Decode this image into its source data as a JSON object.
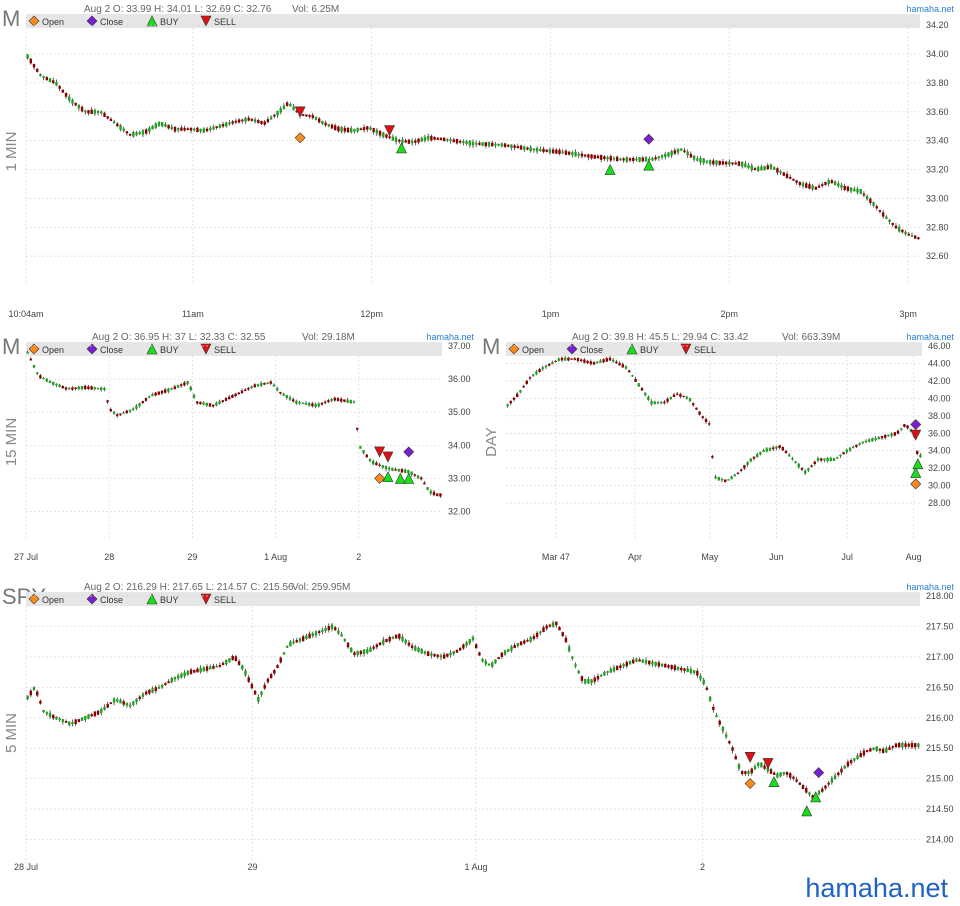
{
  "brand_small": "hamaha.net",
  "brand_footer": "hamaha.net",
  "legend": {
    "open": "Open",
    "close": "Close",
    "buy": "BUY",
    "sell": "SELL"
  },
  "colors": {
    "up_candle": "#22a022",
    "down_candle": "#8b0000",
    "wick": "#222222",
    "open_marker": "#ff8c1a",
    "close_marker": "#7a1fd1",
    "buy_marker": "#18e018",
    "sell_marker": "#dd1111",
    "legend_bar": "#e6e6e6",
    "grid": "#d8d8d8",
    "brand": "#2a7fd4"
  },
  "chart_data": [
    {
      "type": "candlestick",
      "symbol": "M",
      "interval": "1 MIN",
      "info": "Aug 2 O: 33.99 H: 34.01 L: 32.69 C: 32.76",
      "volume": "Vol: 6.25M",
      "ylim": [
        32.4,
        34.25
      ],
      "yticks": [
        "34.20",
        "34.00",
        "33.80",
        "33.60",
        "33.40",
        "33.20",
        "33.00",
        "32.80",
        "32.60"
      ],
      "xlim": [
        0,
        300
      ],
      "xticks": [
        {
          "x": 0,
          "label": "10:04am"
        },
        {
          "x": 56,
          "label": "11am"
        },
        {
          "x": 116,
          "label": "12pm"
        },
        {
          "x": 176,
          "label": "1pm"
        },
        {
          "x": 236,
          "label": "2pm"
        },
        {
          "x": 296,
          "label": "3pm"
        }
      ],
      "path": [
        [
          0,
          34.0
        ],
        [
          5,
          33.85
        ],
        [
          10,
          33.8
        ],
        [
          15,
          33.68
        ],
        [
          20,
          33.6
        ],
        [
          25,
          33.6
        ],
        [
          30,
          33.52
        ],
        [
          35,
          33.44
        ],
        [
          40,
          33.46
        ],
        [
          45,
          33.52
        ],
        [
          50,
          33.48
        ],
        [
          55,
          33.48
        ],
        [
          60,
          33.47
        ],
        [
          65,
          33.5
        ],
        [
          70,
          33.53
        ],
        [
          75,
          33.55
        ],
        [
          80,
          33.52
        ],
        [
          85,
          33.6
        ],
        [
          88,
          33.66
        ],
        [
          92,
          33.58
        ],
        [
          96,
          33.57
        ],
        [
          100,
          33.52
        ],
        [
          105,
          33.48
        ],
        [
          110,
          33.47
        ],
        [
          115,
          33.49
        ],
        [
          120,
          33.44
        ],
        [
          125,
          33.4
        ],
        [
          130,
          33.39
        ],
        [
          135,
          33.42
        ],
        [
          140,
          33.41
        ],
        [
          150,
          33.38
        ],
        [
          160,
          33.37
        ],
        [
          170,
          33.34
        ],
        [
          180,
          33.32
        ],
        [
          190,
          33.29
        ],
        [
          200,
          33.27
        ],
        [
          210,
          33.27
        ],
        [
          215,
          33.3
        ],
        [
          220,
          33.34
        ],
        [
          225,
          33.27
        ],
        [
          230,
          33.25
        ],
        [
          240,
          33.24
        ],
        [
          245,
          33.2
        ],
        [
          250,
          33.22
        ],
        [
          255,
          33.16
        ],
        [
          260,
          33.1
        ],
        [
          265,
          33.07
        ],
        [
          270,
          33.12
        ],
        [
          275,
          33.07
        ],
        [
          280,
          33.05
        ],
        [
          285,
          32.95
        ],
        [
          288,
          32.88
        ],
        [
          292,
          32.8
        ],
        [
          296,
          32.75
        ],
        [
          300,
          32.72
        ]
      ],
      "markers": [
        {
          "kind": "sell",
          "x": 92,
          "y": 33.6
        },
        {
          "kind": "open",
          "x": 92,
          "y": 33.42
        },
        {
          "kind": "sell",
          "x": 122,
          "y": 33.47
        },
        {
          "kind": "buy",
          "x": 126,
          "y": 33.35
        },
        {
          "kind": "buy",
          "x": 196,
          "y": 33.2
        },
        {
          "kind": "close",
          "x": 209,
          "y": 33.41
        },
        {
          "kind": "buy",
          "x": 209,
          "y": 33.23
        }
      ]
    },
    {
      "type": "candlestick",
      "symbol": "M",
      "interval": "15 MIN",
      "info": "Aug 2 O: 36.95 H: 37 L: 32.33 C: 32.55",
      "volume": "Vol: 29.18M",
      "ylim": [
        31.2,
        37.0
      ],
      "yticks": [
        "37.00",
        "36.00",
        "35.00",
        "34.00",
        "33.00",
        "32.00"
      ],
      "xlim": [
        0,
        100
      ],
      "xticks": [
        {
          "x": 0,
          "label": "27 Jul"
        },
        {
          "x": 20,
          "label": "28"
        },
        {
          "x": 40,
          "label": "29"
        },
        {
          "x": 60,
          "label": "1 Aug"
        },
        {
          "x": 80,
          "label": "2"
        }
      ],
      "path": [
        [
          0,
          36.9
        ],
        [
          3,
          36.1
        ],
        [
          6,
          35.9
        ],
        [
          10,
          35.7
        ],
        [
          14,
          35.75
        ],
        [
          19,
          35.7
        ],
        [
          20,
          35.1
        ],
        [
          22,
          34.9
        ],
        [
          26,
          35.1
        ],
        [
          30,
          35.5
        ],
        [
          35,
          35.7
        ],
        [
          39,
          35.9
        ],
        [
          41,
          35.3
        ],
        [
          45,
          35.2
        ],
        [
          50,
          35.5
        ],
        [
          55,
          35.8
        ],
        [
          59,
          35.9
        ],
        [
          61,
          35.6
        ],
        [
          65,
          35.3
        ],
        [
          70,
          35.2
        ],
        [
          74,
          35.4
        ],
        [
          79,
          35.3
        ],
        [
          80,
          34.0
        ],
        [
          83,
          33.5
        ],
        [
          87,
          33.3
        ],
        [
          92,
          33.2
        ],
        [
          95,
          33.0
        ],
        [
          97,
          32.6
        ],
        [
          99,
          32.5
        ]
      ],
      "markers": [
        {
          "kind": "sell",
          "x": 85,
          "y": 33.8
        },
        {
          "kind": "sell",
          "x": 87,
          "y": 33.65
        },
        {
          "kind": "open",
          "x": 85,
          "y": 33.0
        },
        {
          "kind": "buy",
          "x": 87,
          "y": 33.05
        },
        {
          "kind": "buy",
          "x": 90,
          "y": 33.0
        },
        {
          "kind": "buy",
          "x": 92,
          "y": 33.0
        },
        {
          "kind": "close",
          "x": 92,
          "y": 33.8
        }
      ]
    },
    {
      "type": "candlestick",
      "symbol": "M",
      "interval": "DAY",
      "info": "Aug 2 O: 39.8 H: 45.5 L: 29.94 C: 33.42",
      "volume": "Vol: 663.39M",
      "ylim": [
        24.0,
        46.0
      ],
      "yticks": [
        "46.00",
        "44.00",
        "42.00",
        "40.00",
        "38.00",
        "36.00",
        "34.00",
        "32.00",
        "30.00",
        "28.00"
      ],
      "xlim": [
        0,
        100
      ],
      "xticks": [
        {
          "x": 12,
          "label": "Mar 47"
        },
        {
          "x": 31,
          "label": "Apr"
        },
        {
          "x": 49,
          "label": "May"
        },
        {
          "x": 65,
          "label": "Jun"
        },
        {
          "x": 82,
          "label": "Jul"
        },
        {
          "x": 98,
          "label": "Aug"
        }
      ],
      "path": [
        [
          0,
          39.0
        ],
        [
          3,
          40.5
        ],
        [
          6,
          42.5
        ],
        [
          9,
          43.5
        ],
        [
          13,
          44.5
        ],
        [
          17,
          44.5
        ],
        [
          21,
          44.0
        ],
        [
          25,
          44.5
        ],
        [
          29,
          43.5
        ],
        [
          32,
          41.5
        ],
        [
          35,
          39.5
        ],
        [
          38,
          39.5
        ],
        [
          41,
          40.5
        ],
        [
          44,
          40.0
        ],
        [
          47,
          38.0
        ],
        [
          49,
          37.0
        ],
        [
          50,
          31.0
        ],
        [
          53,
          30.5
        ],
        [
          56,
          31.5
        ],
        [
          59,
          33.0
        ],
        [
          62,
          34.0
        ],
        [
          66,
          34.5
        ],
        [
          69,
          33.0
        ],
        [
          72,
          31.5
        ],
        [
          75,
          33.0
        ],
        [
          79,
          33.0
        ],
        [
          82,
          34.0
        ],
        [
          86,
          35.0
        ],
        [
          90,
          35.5
        ],
        [
          94,
          36.0
        ],
        [
          96,
          37.0
        ],
        [
          98,
          36.0
        ],
        [
          99,
          33.4
        ]
      ],
      "markers": [
        {
          "kind": "close",
          "x": 98.5,
          "y": 37.0
        },
        {
          "kind": "sell",
          "x": 98.5,
          "y": 35.8
        },
        {
          "kind": "buy",
          "x": 98.5,
          "y": 31.5
        },
        {
          "kind": "buy",
          "x": 99.0,
          "y": 32.5
        },
        {
          "kind": "open",
          "x": 98.5,
          "y": 30.2
        }
      ]
    },
    {
      "type": "candlestick",
      "symbol": "SPY",
      "interval": "5 MIN",
      "info": "Aug 2 O: 216.29 H: 217.65 L: 214.57 C: 215.56",
      "volume": "Vol: 259.95M",
      "ylim": [
        213.5,
        218.0
      ],
      "yticks": [
        "218.00",
        "217.50",
        "217.00",
        "216.50",
        "216.00",
        "215.50",
        "215.00",
        "214.50",
        "214.00"
      ],
      "xlim": [
        0,
        300
      ],
      "xticks": [
        {
          "x": 0,
          "label": "28 Jul"
        },
        {
          "x": 76,
          "label": "29"
        },
        {
          "x": 151,
          "label": "1 Aug"
        },
        {
          "x": 227,
          "label": "2"
        }
      ],
      "path": [
        [
          0,
          216.3
        ],
        [
          3,
          216.5
        ],
        [
          6,
          216.1
        ],
        [
          10,
          216.0
        ],
        [
          15,
          215.9
        ],
        [
          20,
          216.0
        ],
        [
          25,
          216.1
        ],
        [
          30,
          216.3
        ],
        [
          35,
          216.2
        ],
        [
          40,
          216.4
        ],
        [
          45,
          216.5
        ],
        [
          50,
          216.65
        ],
        [
          55,
          216.75
        ],
        [
          60,
          216.8
        ],
        [
          65,
          216.85
        ],
        [
          70,
          217.0
        ],
        [
          73,
          216.8
        ],
        [
          76,
          216.5
        ],
        [
          78,
          216.3
        ],
        [
          81,
          216.6
        ],
        [
          84,
          216.8
        ],
        [
          88,
          217.2
        ],
        [
          93,
          217.3
        ],
        [
          98,
          217.4
        ],
        [
          103,
          217.5
        ],
        [
          106,
          217.35
        ],
        [
          110,
          217.05
        ],
        [
          115,
          217.1
        ],
        [
          120,
          217.25
        ],
        [
          125,
          217.35
        ],
        [
          130,
          217.15
        ],
        [
          135,
          217.05
        ],
        [
          140,
          217.0
        ],
        [
          145,
          217.1
        ],
        [
          150,
          217.3
        ],
        [
          153,
          216.95
        ],
        [
          156,
          216.85
        ],
        [
          160,
          217.05
        ],
        [
          165,
          217.2
        ],
        [
          170,
          217.3
        ],
        [
          175,
          217.5
        ],
        [
          178,
          217.55
        ],
        [
          181,
          217.3
        ],
        [
          184,
          216.9
        ],
        [
          187,
          216.6
        ],
        [
          190,
          216.6
        ],
        [
          195,
          216.75
        ],
        [
          200,
          216.85
        ],
        [
          205,
          216.95
        ],
        [
          210,
          216.9
        ],
        [
          215,
          216.85
        ],
        [
          220,
          216.8
        ],
        [
          225,
          216.75
        ],
        [
          228,
          216.55
        ],
        [
          231,
          216.1
        ],
        [
          234,
          215.8
        ],
        [
          237,
          215.5
        ],
        [
          240,
          215.1
        ],
        [
          243,
          215.1
        ],
        [
          246,
          215.25
        ],
        [
          249,
          215.15
        ],
        [
          252,
          215.05
        ],
        [
          255,
          215.1
        ],
        [
          258,
          215.0
        ],
        [
          261,
          214.85
        ],
        [
          264,
          214.7
        ],
        [
          267,
          214.8
        ],
        [
          270,
          214.95
        ],
        [
          273,
          215.1
        ],
        [
          276,
          215.25
        ],
        [
          279,
          215.35
        ],
        [
          282,
          215.45
        ],
        [
          285,
          215.5
        ],
        [
          288,
          215.45
        ],
        [
          292,
          215.55
        ],
        [
          296,
          215.55
        ]
      ],
      "markers": [
        {
          "kind": "sell",
          "x": 243,
          "y": 215.35
        },
        {
          "kind": "open",
          "x": 243,
          "y": 214.92
        },
        {
          "kind": "sell",
          "x": 249,
          "y": 215.25
        },
        {
          "kind": "buy",
          "x": 251,
          "y": 214.95
        },
        {
          "kind": "buy",
          "x": 262,
          "y": 214.47
        },
        {
          "kind": "buy",
          "x": 265,
          "y": 214.7
        },
        {
          "kind": "close",
          "x": 266,
          "y": 215.1
        }
      ]
    }
  ]
}
